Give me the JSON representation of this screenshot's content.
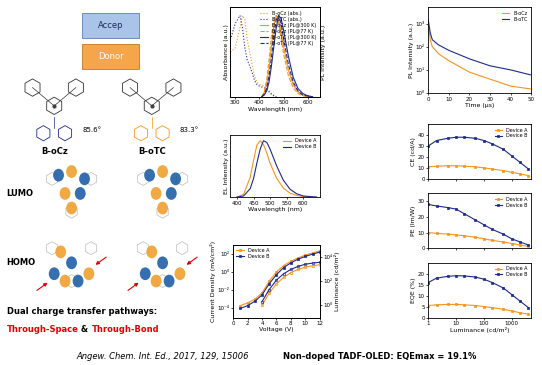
{
  "chart_data": [
    {
      "type": "line",
      "xlabel": "Wavelength (nm)",
      "ylabel": "Absorbance (a.u.)",
      "y2label": "PL Intensity (a.u.)",
      "xlim": [
        280,
        650
      ],
      "xticks": [
        300,
        400,
        500,
        600
      ],
      "ylim": [
        0,
        1.1
      ],
      "y2lim": [
        0,
        1.1
      ],
      "tick_labels": "x",
      "legend": "upper right",
      "series": [
        {
          "name": "B-oCz (abs.)",
          "color": "#f7941d",
          "line_style": "dotted",
          "x": [
            280,
            300,
            320,
            330,
            340,
            350,
            360,
            370,
            380,
            390,
            400,
            410,
            420,
            430,
            440,
            450,
            460,
            470
          ],
          "values": [
            0.55,
            0.6,
            0.85,
            1.0,
            0.95,
            0.7,
            0.55,
            0.4,
            0.25,
            0.18,
            0.15,
            0.14,
            0.13,
            0.11,
            0.08,
            0.04,
            0.02,
            0.0
          ]
        },
        {
          "name": "B-oTC (abs.)",
          "color": "#1c2a8c",
          "line_style": "dotted",
          "x": [
            280,
            300,
            320,
            330,
            340,
            350,
            360,
            370,
            380,
            390,
            400,
            410,
            420,
            430,
            440,
            450,
            460,
            470
          ],
          "values": [
            0.7,
            0.9,
            1.0,
            0.85,
            0.6,
            0.45,
            0.38,
            0.3,
            0.2,
            0.15,
            0.13,
            0.12,
            0.11,
            0.09,
            0.06,
            0.03,
            0.01,
            0.0
          ]
        },
        {
          "name": "B-oCz (PL@300 K)",
          "color": "#f7941d",
          "line_style": "solid",
          "axis": "y2",
          "x": [
            410,
            420,
            430,
            440,
            450,
            460,
            470,
            480,
            490,
            500,
            520,
            540,
            560,
            580,
            600,
            620
          ],
          "values": [
            0.0,
            0.05,
            0.15,
            0.35,
            0.62,
            0.88,
            1.0,
            0.95,
            0.8,
            0.62,
            0.33,
            0.15,
            0.06,
            0.02,
            0.01,
            0.0
          ]
        },
        {
          "name": "B-oCz (PL@77 K)",
          "color": "#f7941d",
          "line_style": "dashed",
          "axis": "y2",
          "x": [
            410,
            420,
            430,
            440,
            450,
            460,
            470,
            480,
            490,
            500,
            520,
            540,
            560,
            580,
            600,
            620
          ],
          "values": [
            0.0,
            0.06,
            0.2,
            0.45,
            0.75,
            0.96,
            1.0,
            0.9,
            0.72,
            0.53,
            0.26,
            0.11,
            0.04,
            0.01,
            0.0,
            0.0
          ]
        },
        {
          "name": "B-oTC (PL@300 K)",
          "color": "#1c2a8c",
          "line_style": "solid",
          "axis": "y2",
          "x": [
            410,
            420,
            430,
            440,
            450,
            460,
            470,
            480,
            490,
            500,
            520,
            540,
            560,
            580,
            600,
            620
          ],
          "values": [
            0.0,
            0.02,
            0.07,
            0.18,
            0.38,
            0.62,
            0.85,
            1.0,
            0.96,
            0.82,
            0.5,
            0.24,
            0.1,
            0.04,
            0.01,
            0.0
          ]
        },
        {
          "name": "B-oTC (PL@77 K)",
          "color": "#1c2a8c",
          "line_style": "dashed",
          "axis": "y2",
          "x": [
            410,
            420,
            430,
            440,
            450,
            460,
            470,
            480,
            490,
            500,
            520,
            540,
            560,
            580,
            600,
            620
          ],
          "values": [
            0.0,
            0.03,
            0.1,
            0.25,
            0.48,
            0.75,
            0.95,
            1.0,
            0.9,
            0.72,
            0.4,
            0.18,
            0.07,
            0.02,
            0.01,
            0.0
          ]
        }
      ]
    },
    {
      "type": "line",
      "log": "y",
      "xlabel": "Time (μs)",
      "ylabel": "PL Intensity (a.u.)",
      "xlim": [
        0,
        50
      ],
      "xticks": [
        0,
        10,
        20,
        30,
        40,
        50
      ],
      "ylim": [
        1,
        5000
      ],
      "yticks": [
        {
          "value": 1,
          "label": "10⁰"
        },
        {
          "value": 10,
          "label": "10¹"
        },
        {
          "value": 100,
          "label": "10²"
        },
        {
          "value": 1000,
          "label": "10³"
        }
      ],
      "legend": "upper right",
      "x": [
        0,
        1,
        2,
        5,
        10,
        20,
        30,
        40,
        50
      ],
      "series": [
        {
          "name": "B-oCz",
          "color": "#f7941d",
          "values": [
            1000,
            200,
            100,
            50,
            25,
            8,
            4,
            2,
            1.5
          ]
        },
        {
          "name": "B-oTC",
          "color": "#1c2a8c",
          "values": [
            1500,
            400,
            200,
            120,
            70,
            30,
            15,
            10,
            6
          ]
        }
      ]
    },
    {
      "type": "line",
      "xlabel": "Wavelength (nm)",
      "ylabel": "EL Intensity (a.u.)",
      "xlim": [
        380,
        650
      ],
      "xticks": [
        400,
        450,
        500,
        550,
        600
      ],
      "ylim": [
        0,
        1.1
      ],
      "tick_labels": "x",
      "legend": "upper right",
      "x": [
        400,
        420,
        440,
        450,
        460,
        470,
        480,
        490,
        500,
        520,
        540,
        560,
        580,
        600,
        620,
        640
      ],
      "series": [
        {
          "name": "Device A",
          "color": "#f7941d",
          "values": [
            0.0,
            0.05,
            0.35,
            0.65,
            0.92,
            1.0,
            0.93,
            0.78,
            0.6,
            0.33,
            0.16,
            0.07,
            0.03,
            0.01,
            0.0,
            0.0
          ]
        },
        {
          "name": "Device B",
          "color": "#1c2a8c",
          "values": [
            0.0,
            0.02,
            0.15,
            0.33,
            0.6,
            0.85,
            1.0,
            0.97,
            0.85,
            0.55,
            0.3,
            0.14,
            0.06,
            0.02,
            0.01,
            0.0
          ]
        }
      ]
    },
    {
      "type": "line",
      "log": "x",
      "ylabel": "CE (cd/A)",
      "xlim": [
        1,
        5000
      ],
      "xticks": [
        1,
        10,
        100,
        1000
      ],
      "ylim": [
        0,
        50
      ],
      "yticks": [
        0,
        10,
        20,
        30,
        40
      ],
      "tick_labels": "y",
      "legend": "upper right",
      "x": [
        1,
        2,
        5,
        10,
        20,
        50,
        100,
        200,
        500,
        1000,
        2000,
        4000
      ],
      "series": [
        {
          "name": "Device A",
          "color": "#f7941d",
          "marker": "square",
          "values": [
            11,
            11.5,
            12,
            12,
            11.5,
            11,
            10,
            9,
            7.5,
            6,
            4.5,
            3
          ]
        },
        {
          "name": "Device B",
          "color": "#1c2a8c",
          "marker": "square",
          "values": [
            30,
            35,
            37,
            38,
            38,
            37,
            35,
            32,
            27,
            21,
            15,
            9
          ]
        }
      ]
    },
    {
      "type": "line",
      "log": "x",
      "ylabel": "PE (lm/W)",
      "xlim": [
        1,
        5000
      ],
      "xticks": [
        1,
        10,
        100,
        1000
      ],
      "ylim": [
        0,
        35
      ],
      "yticks": [
        0,
        10,
        20,
        30
      ],
      "tick_labels": "y",
      "legend": "upper right",
      "x": [
        1,
        2,
        5,
        10,
        20,
        50,
        100,
        200,
        500,
        1000,
        2000,
        4000
      ],
      "series": [
        {
          "name": "Device A",
          "color": "#f7941d",
          "marker": "square",
          "values": [
            10,
            9.5,
            9,
            8.5,
            8,
            7,
            6,
            5,
            4,
            3,
            2,
            1.2
          ]
        },
        {
          "name": "Device B",
          "color": "#1c2a8c",
          "marker": "square",
          "values": [
            28,
            27,
            26,
            25,
            22,
            18,
            15,
            12,
            9,
            6,
            4,
            2
          ]
        }
      ]
    },
    {
      "type": "line",
      "log": "x",
      "xlabel": "Luminance (cd/m²)",
      "ylabel": "EQE (%)",
      "xlim": [
        1,
        5000
      ],
      "xticks": [
        1,
        10,
        100,
        1000
      ],
      "ylim": [
        0,
        25
      ],
      "yticks": [
        0,
        5,
        10,
        15,
        20
      ],
      "legend": "upper right",
      "x": [
        1,
        2,
        5,
        10,
        20,
        50,
        100,
        200,
        500,
        1000,
        2000,
        4000
      ],
      "series": [
        {
          "name": "Device A",
          "color": "#f7941d",
          "marker": "square",
          "values": [
            5.5,
            5.8,
            6,
            6,
            5.8,
            5.5,
            5,
            4.5,
            3.8,
            3,
            2.2,
            1.5
          ]
        },
        {
          "name": "Device B",
          "color": "#1c2a8c",
          "marker": "square",
          "values": [
            16,
            18,
            18.8,
            19.1,
            19,
            18.5,
            17.5,
            16,
            13.5,
            10.5,
            7.5,
            4.5
          ]
        }
      ]
    },
    {
      "type": "line",
      "log": "y",
      "xlabel": "Voltage (V)",
      "ylabel": "Current Density (mA/cm²)",
      "y2label": "Luminance (cd/m²)",
      "xlim": [
        0,
        12
      ],
      "xticks": [
        0,
        2,
        4,
        6,
        8,
        10,
        12
      ],
      "ylim": [
        1e-05,
        1000
      ],
      "yticks": [
        {
          "value": 0.0001,
          "label": "10⁻⁴"
        },
        {
          "value": 0.01,
          "label": "10⁻²"
        },
        {
          "value": 1,
          "label": "10⁰"
        },
        {
          "value": 100,
          "label": "10²"
        }
      ],
      "y2lim": [
        0.1,
        100000
      ],
      "y2ticks": [
        {
          "value": 1,
          "label": "10⁰"
        },
        {
          "value": 100,
          "label": "10²"
        },
        {
          "value": 10000,
          "label": "10⁴"
        }
      ],
      "legend": "upper left",
      "x": [
        1,
        2,
        3,
        4,
        5,
        6,
        7,
        8,
        9,
        10,
        11,
        12
      ],
      "series": [
        {
          "name": "Device A",
          "color": "#f7941d",
          "marker": "square",
          "values": [
            0.0002,
            0.0004,
            0.001,
            0.005,
            0.1,
            1,
            5,
            15,
            35,
            70,
            120,
            200
          ]
        },
        {
          "name": "Device B",
          "color": "#1c2a8c",
          "marker": "square",
          "values": [
            0.0001,
            0.0002,
            0.0006,
            0.003,
            0.05,
            0.5,
            3,
            10,
            25,
            50,
            90,
            150
          ]
        },
        {
          "color": "#f7941d",
          "marker": "circle",
          "axis": "y2",
          "values": [
            null,
            null,
            null,
            1,
            10,
            60,
            200,
            500,
            900,
            1400,
            1800,
            2200
          ]
        },
        {
          "color": "#1c2a8c",
          "marker": "circle",
          "axis": "y2",
          "values": [
            null,
            null,
            null,
            2,
            20,
            120,
            400,
            900,
            1600,
            2400,
            3000,
            3500
          ]
        }
      ]
    }
  ],
  "scheme": {
    "acceptor": "Accep",
    "donor": "Donor"
  },
  "molecules": [
    {
      "name": "B-oCz",
      "angle": "85.6°"
    },
    {
      "name": "B-oTC",
      "angle": "83.3°"
    }
  ],
  "orbitals": [
    "LUMO",
    "HOMO"
  ],
  "highlight": {
    "lead": "Dual charge transfer pathways:",
    "parts": [
      {
        "text": "Through-Space",
        "color": "#e00000"
      },
      {
        "text": " & ",
        "color": "#000000"
      },
      {
        "text": "Through-Bond",
        "color": "#e00000"
      }
    ]
  },
  "caption": "Non-doped TADF-OLED: EQEmax = 19.1%",
  "citation": "Angew. Chem. Int. Ed., 2017, 129, 15006"
}
